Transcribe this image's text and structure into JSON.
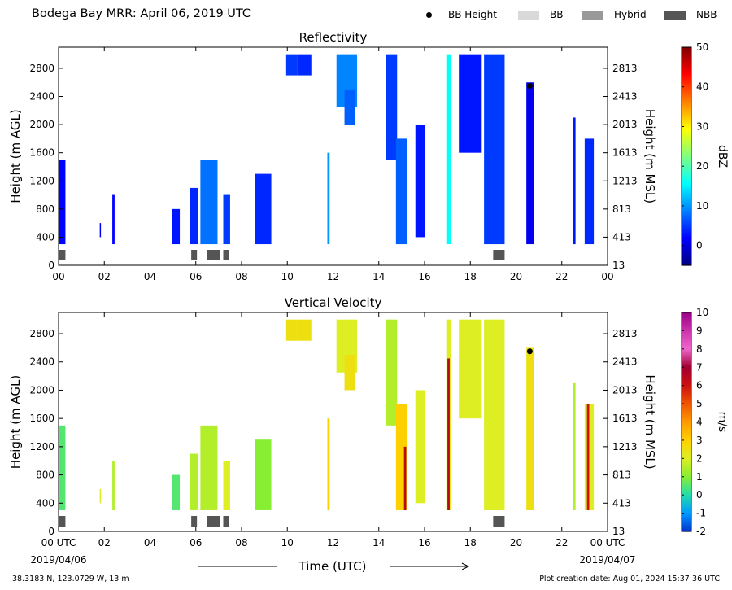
{
  "header": {
    "title": "Bodega Bay MRR:  April 06, 2019 UTC",
    "legend": [
      {
        "label": "BB Height",
        "marker": "dot",
        "color": "#000000"
      },
      {
        "label": "BB",
        "marker": "box",
        "color": "#d9d9d9"
      },
      {
        "label": "Hybrid",
        "marker": "box",
        "color": "#999999"
      },
      {
        "label": "NBB",
        "marker": "box",
        "color": "#555555"
      }
    ]
  },
  "chart_data": [
    {
      "type": "heatmap",
      "title": "Reflectivity",
      "ylabel": "Height (m AGL)",
      "ylabel_right": "Height (m MSL)",
      "xlabel": "Time (UTC)",
      "x_ticks": [
        "00",
        "02",
        "04",
        "06",
        "08",
        "10",
        "12",
        "14",
        "16",
        "18",
        "20",
        "22",
        "00"
      ],
      "y_ticks": [
        0,
        400,
        800,
        1200,
        1600,
        2000,
        2400,
        2800
      ],
      "y_ticks_right": [
        13,
        413,
        813,
        1213,
        1613,
        2013,
        2413,
        2813
      ],
      "xlim": [
        0,
        24
      ],
      "ylim": [
        0,
        3100
      ],
      "colorbar": {
        "label": "dBZ",
        "ticks": [
          0,
          10,
          20,
          30,
          40,
          50
        ],
        "range": [
          -5,
          50
        ],
        "colormap": "jet"
      },
      "bb_height_points": [
        {
          "x": 20.6,
          "y": 2550
        }
      ],
      "bands": [
        {
          "type": "NBB",
          "x": [
            0.0,
            0.3
          ]
        },
        {
          "type": "NBB",
          "x": [
            5.8,
            6.05
          ]
        },
        {
          "type": "NBB",
          "x": [
            6.5,
            7.05
          ]
        },
        {
          "type": "NBB",
          "x": [
            7.2,
            7.45
          ]
        },
        {
          "type": "NBB",
          "x": [
            19.0,
            19.5
          ]
        }
      ],
      "echoes": [
        {
          "x": [
            0.0,
            0.3
          ],
          "y": [
            300,
            1500
          ],
          "value": 2
        },
        {
          "x": [
            1.8,
            1.85
          ],
          "y": [
            400,
            600
          ],
          "value": 2
        },
        {
          "x": [
            2.35,
            2.45
          ],
          "y": [
            300,
            1000
          ],
          "value": 2
        },
        {
          "x": [
            4.95,
            5.3
          ],
          "y": [
            300,
            800
          ],
          "value": 3
        },
        {
          "x": [
            5.75,
            6.1
          ],
          "y": [
            300,
            1100
          ],
          "value": 4
        },
        {
          "x": [
            6.2,
            6.95
          ],
          "y": [
            300,
            1500
          ],
          "value": 8
        },
        {
          "x": [
            7.2,
            7.5
          ],
          "y": [
            300,
            1000
          ],
          "value": 5
        },
        {
          "x": [
            8.6,
            9.3
          ],
          "y": [
            300,
            1300
          ],
          "value": 4
        },
        {
          "x": [
            9.95,
            10.45
          ],
          "y": [
            2700,
            3000
          ],
          "value": 5
        },
        {
          "x": [
            10.45,
            11.05
          ],
          "y": [
            2700,
            3000
          ],
          "value": 4
        },
        {
          "x": [
            11.75,
            11.85
          ],
          "y": [
            300,
            1600
          ],
          "value": 10
        },
        {
          "x": [
            12.15,
            13.05
          ],
          "y": [
            2250,
            3000
          ],
          "value": 9
        },
        {
          "x": [
            12.5,
            12.95
          ],
          "y": [
            2000,
            2500
          ],
          "value": 7
        },
        {
          "x": [
            14.3,
            14.8
          ],
          "y": [
            1500,
            3000
          ],
          "value": 5
        },
        {
          "x": [
            14.75,
            15.25
          ],
          "y": [
            300,
            1800
          ],
          "value": 7
        },
        {
          "x": [
            15.6,
            16.0
          ],
          "y": [
            400,
            2000
          ],
          "value": 3
        },
        {
          "x": [
            16.95,
            17.15
          ],
          "y": [
            300,
            3000
          ],
          "value": 16
        },
        {
          "x": [
            17.5,
            18.5
          ],
          "y": [
            1600,
            3000
          ],
          "value": 3
        },
        {
          "x": [
            18.6,
            19.5
          ],
          "y": [
            300,
            3000
          ],
          "value": 5
        },
        {
          "x": [
            20.45,
            20.8
          ],
          "y": [
            300,
            2600
          ],
          "value": 1
        },
        {
          "x": [
            22.5,
            22.6
          ],
          "y": [
            300,
            2100
          ],
          "value": 3
        },
        {
          "x": [
            23.0,
            23.4
          ],
          "y": [
            300,
            1800
          ],
          "value": 4
        }
      ]
    },
    {
      "type": "heatmap",
      "title": "Vertical Velocity",
      "ylabel": "Height (m AGL)",
      "ylabel_right": "Height (m MSL)",
      "xlabel": "Time (UTC)",
      "x_ticks": [
        "00 UTC",
        "02",
        "04",
        "06",
        "08",
        "10",
        "12",
        "14",
        "16",
        "18",
        "20",
        "22",
        "00 UTC"
      ],
      "x_date_labels": [
        "2019/04/06",
        "2019/04/07"
      ],
      "y_ticks": [
        0,
        400,
        800,
        1200,
        1600,
        2000,
        2400,
        2800
      ],
      "y_ticks_right": [
        13,
        413,
        813,
        1213,
        1613,
        2013,
        2413,
        2813
      ],
      "xlim": [
        0,
        24
      ],
      "ylim": [
        0,
        3100
      ],
      "colorbar": {
        "label": "m/s",
        "ticks": [
          -2,
          -1,
          0,
          1,
          2,
          3,
          4,
          5,
          6,
          7,
          8,
          9,
          10
        ],
        "range": [
          -2,
          10
        ],
        "colormap": "velocity"
      },
      "bb_height_points": [
        {
          "x": 20.6,
          "y": 2550
        }
      ],
      "bands": [
        {
          "type": "NBB",
          "x": [
            0.0,
            0.3
          ]
        },
        {
          "type": "NBB",
          "x": [
            5.8,
            6.05
          ]
        },
        {
          "type": "NBB",
          "x": [
            6.5,
            7.05
          ]
        },
        {
          "type": "NBB",
          "x": [
            7.2,
            7.45
          ]
        },
        {
          "type": "NBB",
          "x": [
            19.0,
            19.5
          ]
        }
      ],
      "echoes": [
        {
          "x": [
            0.0,
            0.3
          ],
          "y": [
            300,
            1500
          ],
          "value": 0.5
        },
        {
          "x": [
            1.8,
            1.85
          ],
          "y": [
            400,
            600
          ],
          "value": 2
        },
        {
          "x": [
            2.35,
            2.45
          ],
          "y": [
            300,
            1000
          ],
          "value": 1.5
        },
        {
          "x": [
            4.95,
            5.3
          ],
          "y": [
            300,
            800
          ],
          "value": 0.5
        },
        {
          "x": [
            5.75,
            6.1
          ],
          "y": [
            300,
            1100
          ],
          "value": 1.5
        },
        {
          "x": [
            6.2,
            6.95
          ],
          "y": [
            300,
            1500
          ],
          "value": 1.5
        },
        {
          "x": [
            7.2,
            7.5
          ],
          "y": [
            300,
            1000
          ],
          "value": 2
        },
        {
          "x": [
            8.6,
            9.3
          ],
          "y": [
            300,
            1300
          ],
          "value": 1
        },
        {
          "x": [
            9.95,
            10.45
          ],
          "y": [
            2700,
            3000
          ],
          "value": 2.5
        },
        {
          "x": [
            10.45,
            11.05
          ],
          "y": [
            2700,
            3000
          ],
          "value": 2.5
        },
        {
          "x": [
            11.75,
            11.85
          ],
          "y": [
            300,
            1600
          ],
          "value": 3
        },
        {
          "x": [
            12.15,
            13.05
          ],
          "y": [
            2250,
            3000
          ],
          "value": 2
        },
        {
          "x": [
            12.5,
            12.95
          ],
          "y": [
            2000,
            2500
          ],
          "value": 2.5
        },
        {
          "x": [
            14.3,
            14.8
          ],
          "y": [
            1500,
            3000
          ],
          "value": 1.5
        },
        {
          "x": [
            14.75,
            15.25
          ],
          "y": [
            300,
            1800
          ],
          "value": 3
        },
        {
          "x": [
            15.1,
            15.2
          ],
          "y": [
            300,
            1200
          ],
          "value": 6.5
        },
        {
          "x": [
            15.6,
            16.0
          ],
          "y": [
            400,
            2000
          ],
          "value": 2
        },
        {
          "x": [
            16.95,
            17.15
          ],
          "y": [
            300,
            3000
          ],
          "value": 2
        },
        {
          "x": [
            17.0,
            17.1
          ],
          "y": [
            300,
            2450
          ],
          "value": 6.5
        },
        {
          "x": [
            17.5,
            18.5
          ],
          "y": [
            1600,
            3000
          ],
          "value": 2
        },
        {
          "x": [
            18.6,
            19.5
          ],
          "y": [
            300,
            3000
          ],
          "value": 2
        },
        {
          "x": [
            20.45,
            20.8
          ],
          "y": [
            300,
            2600
          ],
          "value": 2.5
        },
        {
          "x": [
            22.5,
            22.6
          ],
          "y": [
            300,
            2100
          ],
          "value": 1.5
        },
        {
          "x": [
            23.0,
            23.4
          ],
          "y": [
            300,
            1800
          ],
          "value": 2
        },
        {
          "x": [
            23.1,
            23.2
          ],
          "y": [
            300,
            1800
          ],
          "value": 6
        }
      ]
    }
  ],
  "footer": {
    "location": "38.3183 N, 123.0729 W, 13 m",
    "created": "Plot creation date: Aug 01, 2024 15:37:36 UTC"
  }
}
